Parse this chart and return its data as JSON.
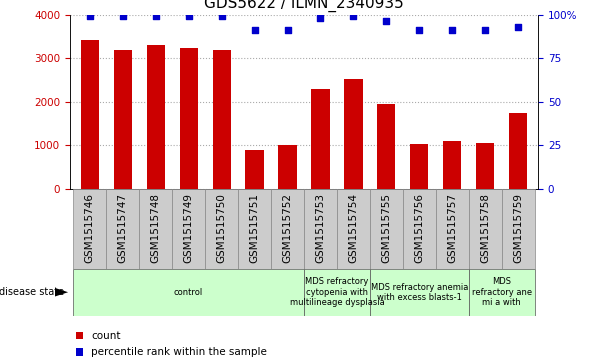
{
  "title": "GDS5622 / ILMN_2340935",
  "samples": [
    "GSM1515746",
    "GSM1515747",
    "GSM1515748",
    "GSM1515749",
    "GSM1515750",
    "GSM1515751",
    "GSM1515752",
    "GSM1515753",
    "GSM1515754",
    "GSM1515755",
    "GSM1515756",
    "GSM1515757",
    "GSM1515758",
    "GSM1515759"
  ],
  "counts": [
    3420,
    3190,
    3290,
    3240,
    3180,
    900,
    1010,
    2280,
    2520,
    1940,
    1020,
    1100,
    1050,
    1740
  ],
  "percentiles": [
    99,
    99,
    99,
    99,
    99,
    91,
    91,
    98,
    99,
    96,
    91,
    91,
    91,
    93
  ],
  "ylim_left": [
    0,
    4000
  ],
  "ylim_right": [
    0,
    100
  ],
  "yticks_left": [
    0,
    1000,
    2000,
    3000,
    4000
  ],
  "yticks_right": [
    0,
    25,
    50,
    75,
    100
  ],
  "bar_color": "#cc0000",
  "scatter_color": "#0000cc",
  "grid_color": "#aaaaaa",
  "bg_color": "#ffffff",
  "xtick_bg_color": "#cccccc",
  "disease_groups": [
    {
      "label": "control",
      "start": 0,
      "end": 7
    },
    {
      "label": "MDS refractory\ncytopenia with\nmultilineage dysplasia",
      "start": 7,
      "end": 9
    },
    {
      "label": "MDS refractory anemia\nwith excess blasts-1",
      "start": 9,
      "end": 12
    },
    {
      "label": "MDS\nrefractory ane\nmi a with",
      "start": 12,
      "end": 14
    }
  ],
  "disease_bg_color": "#ccffcc",
  "tick_color_left": "#cc0000",
  "tick_color_right": "#0000cc",
  "legend_count": "count",
  "legend_percentile": "percentile rank within the sample",
  "disease_state_label": "disease state",
  "title_fontsize": 11,
  "tick_fontsize": 7.5,
  "label_fontsize": 7.5
}
